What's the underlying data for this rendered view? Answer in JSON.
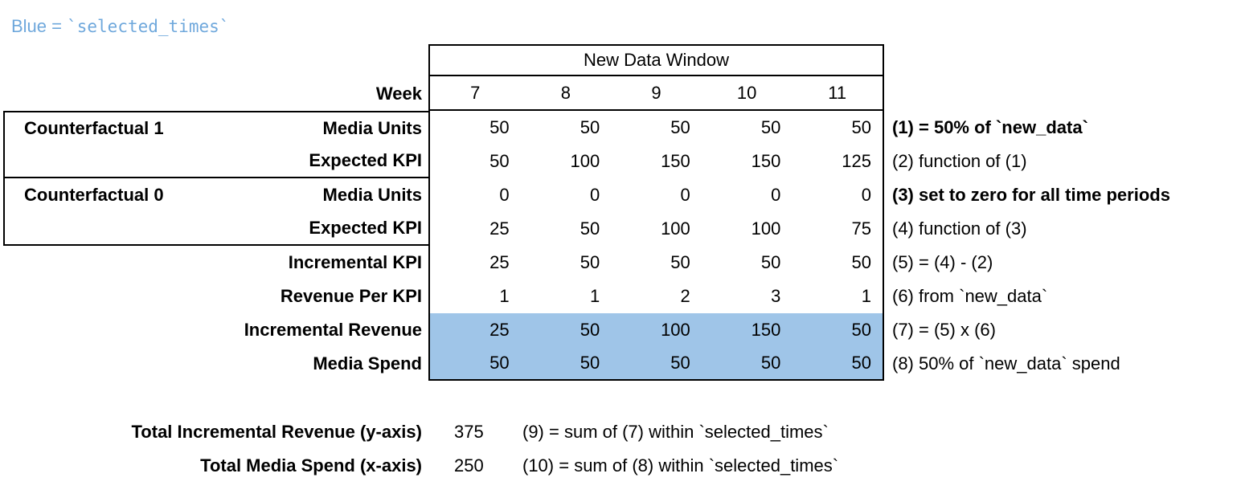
{
  "legend": {
    "prefix": "Blue = ",
    "code": "`selected_times`",
    "text_color": "#6FA8DC"
  },
  "table": {
    "window_header": "New Data Window",
    "week_label": "Week",
    "weeks": [
      "7",
      "8",
      "9",
      "10",
      "11"
    ],
    "highlight_color": "#9FC5E8",
    "rows": [
      {
        "group": "Counterfactual 1",
        "label": "Media Units",
        "values": [
          "50",
          "50",
          "50",
          "50",
          "50"
        ],
        "annotation": "(1) = 50% of `new_data`"
      },
      {
        "label": "Expected KPI",
        "values": [
          "50",
          "100",
          "150",
          "150",
          "125"
        ],
        "annotation": "(2) function of (1)"
      },
      {
        "group": "Counterfactual 0",
        "label": "Media Units",
        "values": [
          "0",
          "0",
          "0",
          "0",
          "0"
        ],
        "annotation": "(3) set to zero for all time periods"
      },
      {
        "label": "Expected KPI",
        "values": [
          "25",
          "50",
          "100",
          "100",
          "75"
        ],
        "annotation": "(4) function of (3)"
      },
      {
        "label": "Incremental KPI",
        "values": [
          "25",
          "50",
          "50",
          "50",
          "50"
        ],
        "annotation": "(5) = (4) - (2)"
      },
      {
        "label": "Revenue Per KPI",
        "values": [
          "1",
          "1",
          "2",
          "3",
          "1"
        ],
        "annotation": "(6) from `new_data`"
      },
      {
        "label": "Incremental Revenue",
        "values": [
          "25",
          "50",
          "100",
          "150",
          "50"
        ],
        "annotation": "(7) = (5) x (6)"
      },
      {
        "label": "Media Spend",
        "values": [
          "50",
          "50",
          "50",
          "50",
          "50"
        ],
        "annotation": "(8) 50% of `new_data` spend"
      }
    ]
  },
  "totals": [
    {
      "label": "Total Incremental Revenue (y-axis)",
      "value": "375",
      "annotation": "(9) = sum of (7) within `selected_times`"
    },
    {
      "label": "Total Media Spend (x-axis)",
      "value": "250",
      "annotation": "(10) = sum of (8) within `selected_times`"
    }
  ]
}
